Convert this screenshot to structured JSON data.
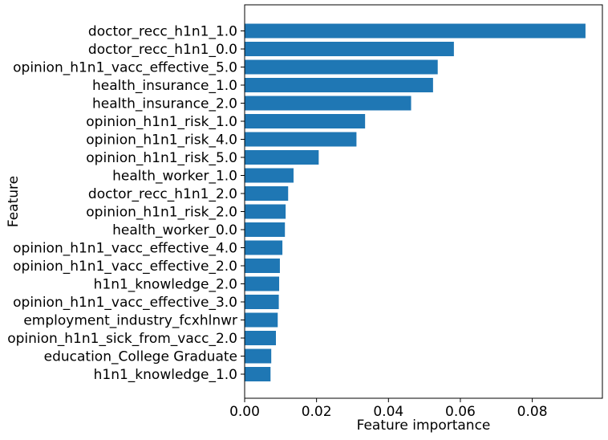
{
  "chart_data": {
    "type": "bar",
    "orientation": "horizontal",
    "xlabel": "Feature importance",
    "ylabel": "Feature",
    "xlim": [
      0,
      0.0995
    ],
    "xticks": [
      {
        "value": 0.0,
        "label": "0.00"
      },
      {
        "value": 0.02,
        "label": "0.02"
      },
      {
        "value": 0.04,
        "label": "0.04"
      },
      {
        "value": 0.06,
        "label": "0.06"
      },
      {
        "value": 0.08,
        "label": "0.08"
      }
    ],
    "categories": [
      "doctor_recc_h1n1_1.0",
      "doctor_recc_h1n1_0.0",
      "opinion_h1n1_vacc_effective_5.0",
      "health_insurance_1.0",
      "health_insurance_2.0",
      "opinion_h1n1_risk_1.0",
      "opinion_h1n1_risk_4.0",
      "opinion_h1n1_risk_5.0",
      "health_worker_1.0",
      "doctor_recc_h1n1_2.0",
      "opinion_h1n1_risk_2.0",
      "health_worker_0.0",
      "opinion_h1n1_vacc_effective_4.0",
      "opinion_h1n1_vacc_effective_2.0",
      "h1n1_knowledge_2.0",
      "opinion_h1n1_vacc_effective_3.0",
      "employment_industry_fcxhlnwr",
      "opinion_h1n1_sick_from_vacc_2.0",
      "education_College Graduate",
      "h1n1_knowledge_1.0"
    ],
    "values": [
      0.0948,
      0.0582,
      0.0537,
      0.0524,
      0.0463,
      0.0335,
      0.0311,
      0.0206,
      0.0136,
      0.0121,
      0.0114,
      0.0112,
      0.0105,
      0.0098,
      0.0096,
      0.0095,
      0.0092,
      0.0087,
      0.0074,
      0.0072
    ],
    "bar_color": "#1f77b4",
    "grid": false,
    "legend": "none"
  }
}
